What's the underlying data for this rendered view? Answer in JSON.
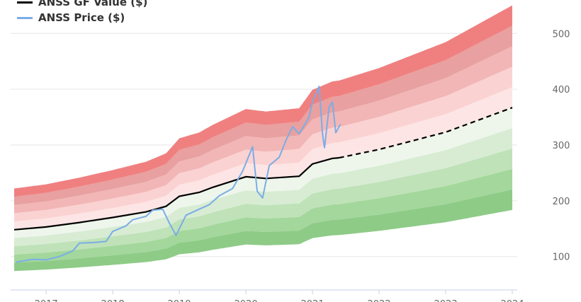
{
  "chart_data": {
    "type": "area",
    "x_unit": "year",
    "xlim": [
      2016.52,
      2024.0
    ],
    "ylim": [
      40,
      560
    ],
    "y_ticks": [
      100,
      200,
      300,
      400,
      500
    ],
    "x_ticks": [
      2017,
      2018,
      2019,
      2020,
      2021,
      2022,
      2023,
      2024
    ],
    "grid": "horizontal",
    "legend_position": "top-left",
    "colors": {
      "gf_value": "#000000",
      "price": "#7aade6",
      "bands_high": [
        "#f08080",
        "#e8a0a0",
        "#f2b6b6",
        "#fbd2d2",
        "#fde5e5"
      ],
      "bands_low": [
        "#eef6ec",
        "#d8ecd4",
        "#bfe2b8",
        "#a3d79b",
        "#8ecb87"
      ]
    },
    "series": [
      {
        "name": "ANSS GF Value ($)",
        "role": "gf_value",
        "points": [
          [
            2016.52,
            148
          ],
          [
            2017.0,
            153
          ],
          [
            2017.5,
            161
          ],
          [
            2018.0,
            170
          ],
          [
            2018.5,
            180
          ],
          [
            2018.8,
            190
          ],
          [
            2019.0,
            208
          ],
          [
            2019.3,
            215
          ],
          [
            2019.5,
            224
          ],
          [
            2020.0,
            243
          ],
          [
            2020.3,
            240
          ],
          [
            2020.8,
            244
          ],
          [
            2021.0,
            266
          ],
          [
            2021.3,
            276
          ],
          [
            2021.4,
            277
          ]
        ],
        "projected_points": [
          [
            2021.4,
            277
          ],
          [
            2022.0,
            292
          ],
          [
            2023.0,
            323
          ],
          [
            2024.0,
            367
          ]
        ]
      },
      {
        "name": "ANSS Price ($)",
        "role": "price",
        "points": [
          [
            2016.55,
            90
          ],
          [
            2016.8,
            95
          ],
          [
            2017.0,
            94
          ],
          [
            2017.2,
            100
          ],
          [
            2017.4,
            110
          ],
          [
            2017.5,
            124
          ],
          [
            2017.7,
            125
          ],
          [
            2017.9,
            127
          ],
          [
            2018.0,
            145
          ],
          [
            2018.2,
            155
          ],
          [
            2018.3,
            166
          ],
          [
            2018.5,
            172
          ],
          [
            2018.6,
            183
          ],
          [
            2018.75,
            185
          ],
          [
            2018.85,
            160
          ],
          [
            2018.95,
            138
          ],
          [
            2019.1,
            174
          ],
          [
            2019.3,
            185
          ],
          [
            2019.45,
            193
          ],
          [
            2019.6,
            209
          ],
          [
            2019.8,
            222
          ],
          [
            2019.95,
            253
          ],
          [
            2020.1,
            297
          ],
          [
            2020.17,
            217
          ],
          [
            2020.25,
            205
          ],
          [
            2020.35,
            263
          ],
          [
            2020.5,
            278
          ],
          [
            2020.6,
            308
          ],
          [
            2020.7,
            333
          ],
          [
            2020.8,
            320
          ],
          [
            2020.95,
            350
          ],
          [
            2021.0,
            378
          ],
          [
            2021.1,
            405
          ],
          [
            2021.15,
            320
          ],
          [
            2021.18,
            295
          ],
          [
            2021.25,
            368
          ],
          [
            2021.3,
            377
          ],
          [
            2021.35,
            322
          ],
          [
            2021.42,
            337
          ]
        ]
      }
    ]
  }
}
